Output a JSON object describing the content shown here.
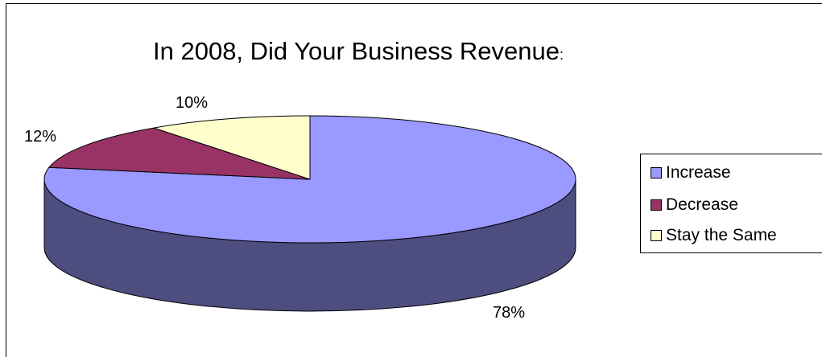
{
  "chart_data": {
    "type": "pie",
    "title": "In 2008, Did Your Business Revenue",
    "title_suffix": ":",
    "categories": [
      "Increase",
      "Decrease",
      "Stay the Same"
    ],
    "values": [
      78,
      12,
      10
    ],
    "labels": [
      "78%",
      "12%",
      "10%"
    ],
    "colors": [
      "#9999ff",
      "#993366",
      "#ffffcc"
    ],
    "side_colors": [
      "#4d4d80",
      "#4d1a33",
      "#80806a"
    ],
    "legend_position": "right",
    "style": "3d"
  }
}
